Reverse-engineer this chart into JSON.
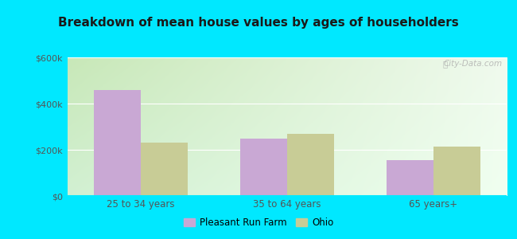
{
  "title": "Breakdown of mean house values by ages of householders",
  "categories": [
    "25 to 34 years",
    "35 to 64 years",
    "65 years+"
  ],
  "pleasant_run_farm": [
    460000,
    250000,
    155000
  ],
  "ohio": [
    230000,
    270000,
    215000
  ],
  "bar_color_prf": "#c9a8d4",
  "bar_color_ohio": "#c8cc96",
  "ylim": [
    0,
    600000
  ],
  "ytick_labels": [
    "$0",
    "$200k",
    "$400k",
    "$600k"
  ],
  "ytick_vals": [
    0,
    200000,
    400000,
    600000
  ],
  "bg_outer": "#00e8ff",
  "legend_label_prf": "Pleasant Run Farm",
  "legend_label_ohio": "Ohio",
  "bar_width": 0.32,
  "watermark": "City-Data.com",
  "gradient_top_left": "#c8e8b8",
  "gradient_top_right": "#f0f8f0",
  "gradient_bottom": "#e8f8e8"
}
